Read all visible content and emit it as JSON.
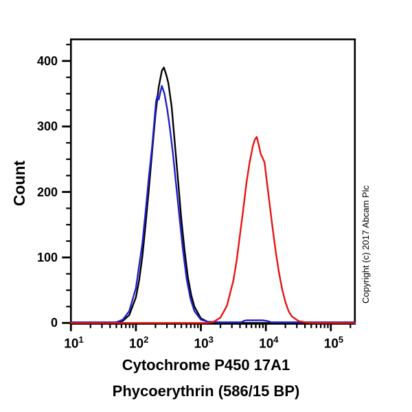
{
  "figure": {
    "y_axis_title": "Count",
    "x_axis_title_line1": "Cytochrome P450 17A1",
    "x_axis_title_line2": "Phycoerythrin (586/15 BP)",
    "copyright": "Copyright (c) 2017 Abcam Plc"
  },
  "colors": {
    "background": "#ffffff",
    "axis": "#000000",
    "black_curve": "#000000",
    "blue_curve": "#2121cc",
    "red_curve": "#e81212"
  },
  "chart_data": {
    "type": "line",
    "subtype": "flow-cytometry-histogram",
    "title": "",
    "xlabel": "Cytochrome P450 17A1 — Phycoerythrin (586/15 BP)",
    "ylabel": "Count",
    "x_scale": "log10",
    "xlim_log10": [
      1,
      5.37
    ],
    "ylim": [
      0,
      433
    ],
    "grid": false,
    "legend": "none",
    "y_tick_labels": [
      {
        "text": "0",
        "value": 0
      },
      {
        "text": "100",
        "value": 100
      },
      {
        "text": "200",
        "value": 200
      },
      {
        "text": "300",
        "value": 300
      },
      {
        "text": "400",
        "value": 400
      }
    ],
    "y_minor_step": 25,
    "x_tick_labels": [
      {
        "base": "10",
        "exp": "1",
        "value": 1
      },
      {
        "base": "10",
        "exp": "2",
        "value": 2
      },
      {
        "base": "10",
        "exp": "3",
        "value": 3
      },
      {
        "base": "10",
        "exp": "4",
        "value": 4
      },
      {
        "base": "10",
        "exp": "5",
        "value": 5
      }
    ],
    "series": [
      {
        "name": "black",
        "color": "#000000",
        "peak": {
          "x": 269,
          "count": 390
        },
        "points": [
          [
            50,
            0
          ],
          [
            63,
            3
          ],
          [
            79,
            12
          ],
          [
            100,
            39
          ],
          [
            112,
            65
          ],
          [
            126,
            102
          ],
          [
            141,
            150
          ],
          [
            158,
            203
          ],
          [
            178,
            262
          ],
          [
            200,
            318
          ],
          [
            224,
            360
          ],
          [
            251,
            385
          ],
          [
            269,
            390
          ],
          [
            295,
            378
          ],
          [
            316,
            366
          ],
          [
            355,
            330
          ],
          [
            398,
            273
          ],
          [
            447,
            215
          ],
          [
            501,
            158
          ],
          [
            562,
            110
          ],
          [
            631,
            70
          ],
          [
            708,
            43
          ],
          [
            794,
            25
          ],
          [
            1000,
            7
          ],
          [
            1259,
            2
          ],
          [
            1585,
            0
          ]
        ]
      },
      {
        "name": "blue",
        "color": "#2121cc",
        "peak": {
          "x": 251,
          "count": 362
        },
        "points": [
          [
            50,
            1
          ],
          [
            63,
            5
          ],
          [
            79,
            18
          ],
          [
            100,
            53
          ],
          [
            126,
            122
          ],
          [
            141,
            170
          ],
          [
            158,
            222
          ],
          [
            178,
            270
          ],
          [
            191,
            305
          ],
          [
            204,
            338
          ],
          [
            214,
            347
          ],
          [
            224,
            341
          ],
          [
            251,
            362
          ],
          [
            275,
            350
          ],
          [
            302,
            328
          ],
          [
            331,
            300
          ],
          [
            372,
            258
          ],
          [
            417,
            210
          ],
          [
            468,
            162
          ],
          [
            525,
            114
          ],
          [
            603,
            67
          ],
          [
            692,
            37
          ],
          [
            794,
            18
          ],
          [
            1000,
            5
          ],
          [
            1259,
            2
          ],
          [
            2000,
            1
          ],
          [
            3162,
            1
          ],
          [
            4169,
            1
          ],
          [
            4571,
            3
          ],
          [
            5012,
            4
          ],
          [
            8913,
            4
          ],
          [
            10471,
            3
          ],
          [
            12023,
            1
          ],
          [
            15849,
            1
          ]
        ]
      },
      {
        "name": "red",
        "color": "#e81212",
        "peak": {
          "x": 7244,
          "count": 284
        },
        "points": [
          [
            1259,
            0
          ],
          [
            1585,
            2
          ],
          [
            1995,
            8
          ],
          [
            2512,
            26
          ],
          [
            3162,
            65
          ],
          [
            3548,
            95
          ],
          [
            3981,
            133
          ],
          [
            4467,
            172
          ],
          [
            5012,
            213
          ],
          [
            5623,
            245
          ],
          [
            6310,
            270
          ],
          [
            6761,
            280
          ],
          [
            7244,
            284
          ],
          [
            7762,
            272
          ],
          [
            8318,
            258
          ],
          [
            8913,
            252
          ],
          [
            9550,
            245
          ],
          [
            10000,
            228
          ],
          [
            11220,
            188
          ],
          [
            12589,
            148
          ],
          [
            14125,
            110
          ],
          [
            15849,
            78
          ],
          [
            17783,
            52
          ],
          [
            19953,
            32
          ],
          [
            22387,
            18
          ],
          [
            25119,
            10
          ],
          [
            31623,
            3
          ],
          [
            39811,
            1
          ],
          [
            50119,
            0
          ]
        ]
      }
    ]
  }
}
